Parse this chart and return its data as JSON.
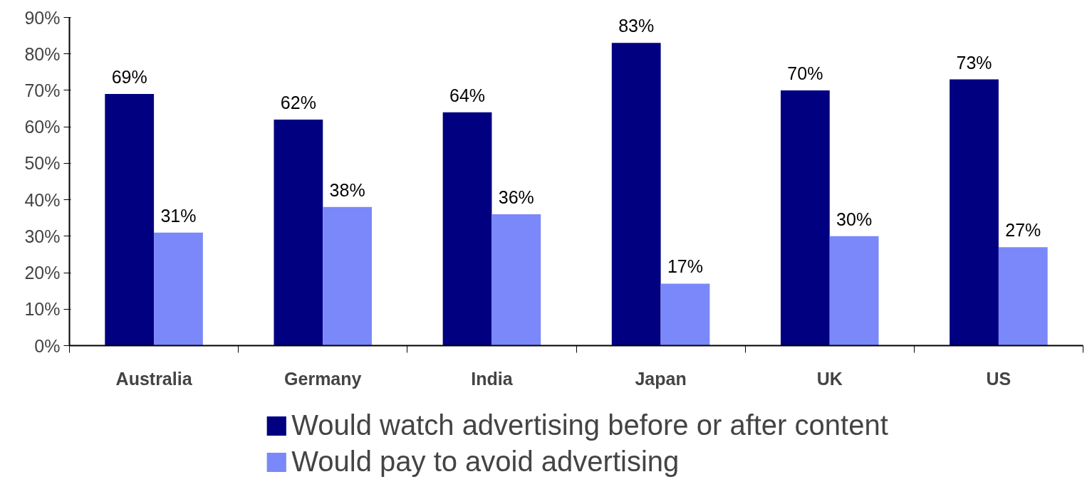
{
  "chart_data": {
    "type": "bar",
    "categories": [
      "Australia",
      "Germany",
      "India",
      "Japan",
      "UK",
      "US"
    ],
    "series": [
      {
        "name": "Would watch advertising before or after content",
        "color": "#000080",
        "values": [
          69,
          62,
          64,
          83,
          70,
          73
        ],
        "value_labels": [
          "69%",
          "62%",
          "64%",
          "83%",
          "70%",
          "73%"
        ]
      },
      {
        "name": "Would pay to avoid advertising",
        "color": "#7b88fa",
        "values": [
          31,
          38,
          36,
          17,
          30,
          27
        ],
        "value_labels": [
          "31%",
          "38%",
          "36%",
          "17%",
          "30%",
          "27%"
        ]
      }
    ],
    "ylim": [
      0,
      90
    ],
    "yticks": [
      {
        "value": 0,
        "label": "0%"
      },
      {
        "value": 10,
        "label": "10%"
      },
      {
        "value": 20,
        "label": "20%"
      },
      {
        "value": 30,
        "label": "30%"
      },
      {
        "value": 40,
        "label": "40%"
      },
      {
        "value": 50,
        "label": "50%"
      },
      {
        "value": 60,
        "label": "60%"
      },
      {
        "value": 70,
        "label": "70%"
      },
      {
        "value": 80,
        "label": "80%"
      },
      {
        "value": 90,
        "label": "90%"
      }
    ],
    "legend": "bottom"
  }
}
